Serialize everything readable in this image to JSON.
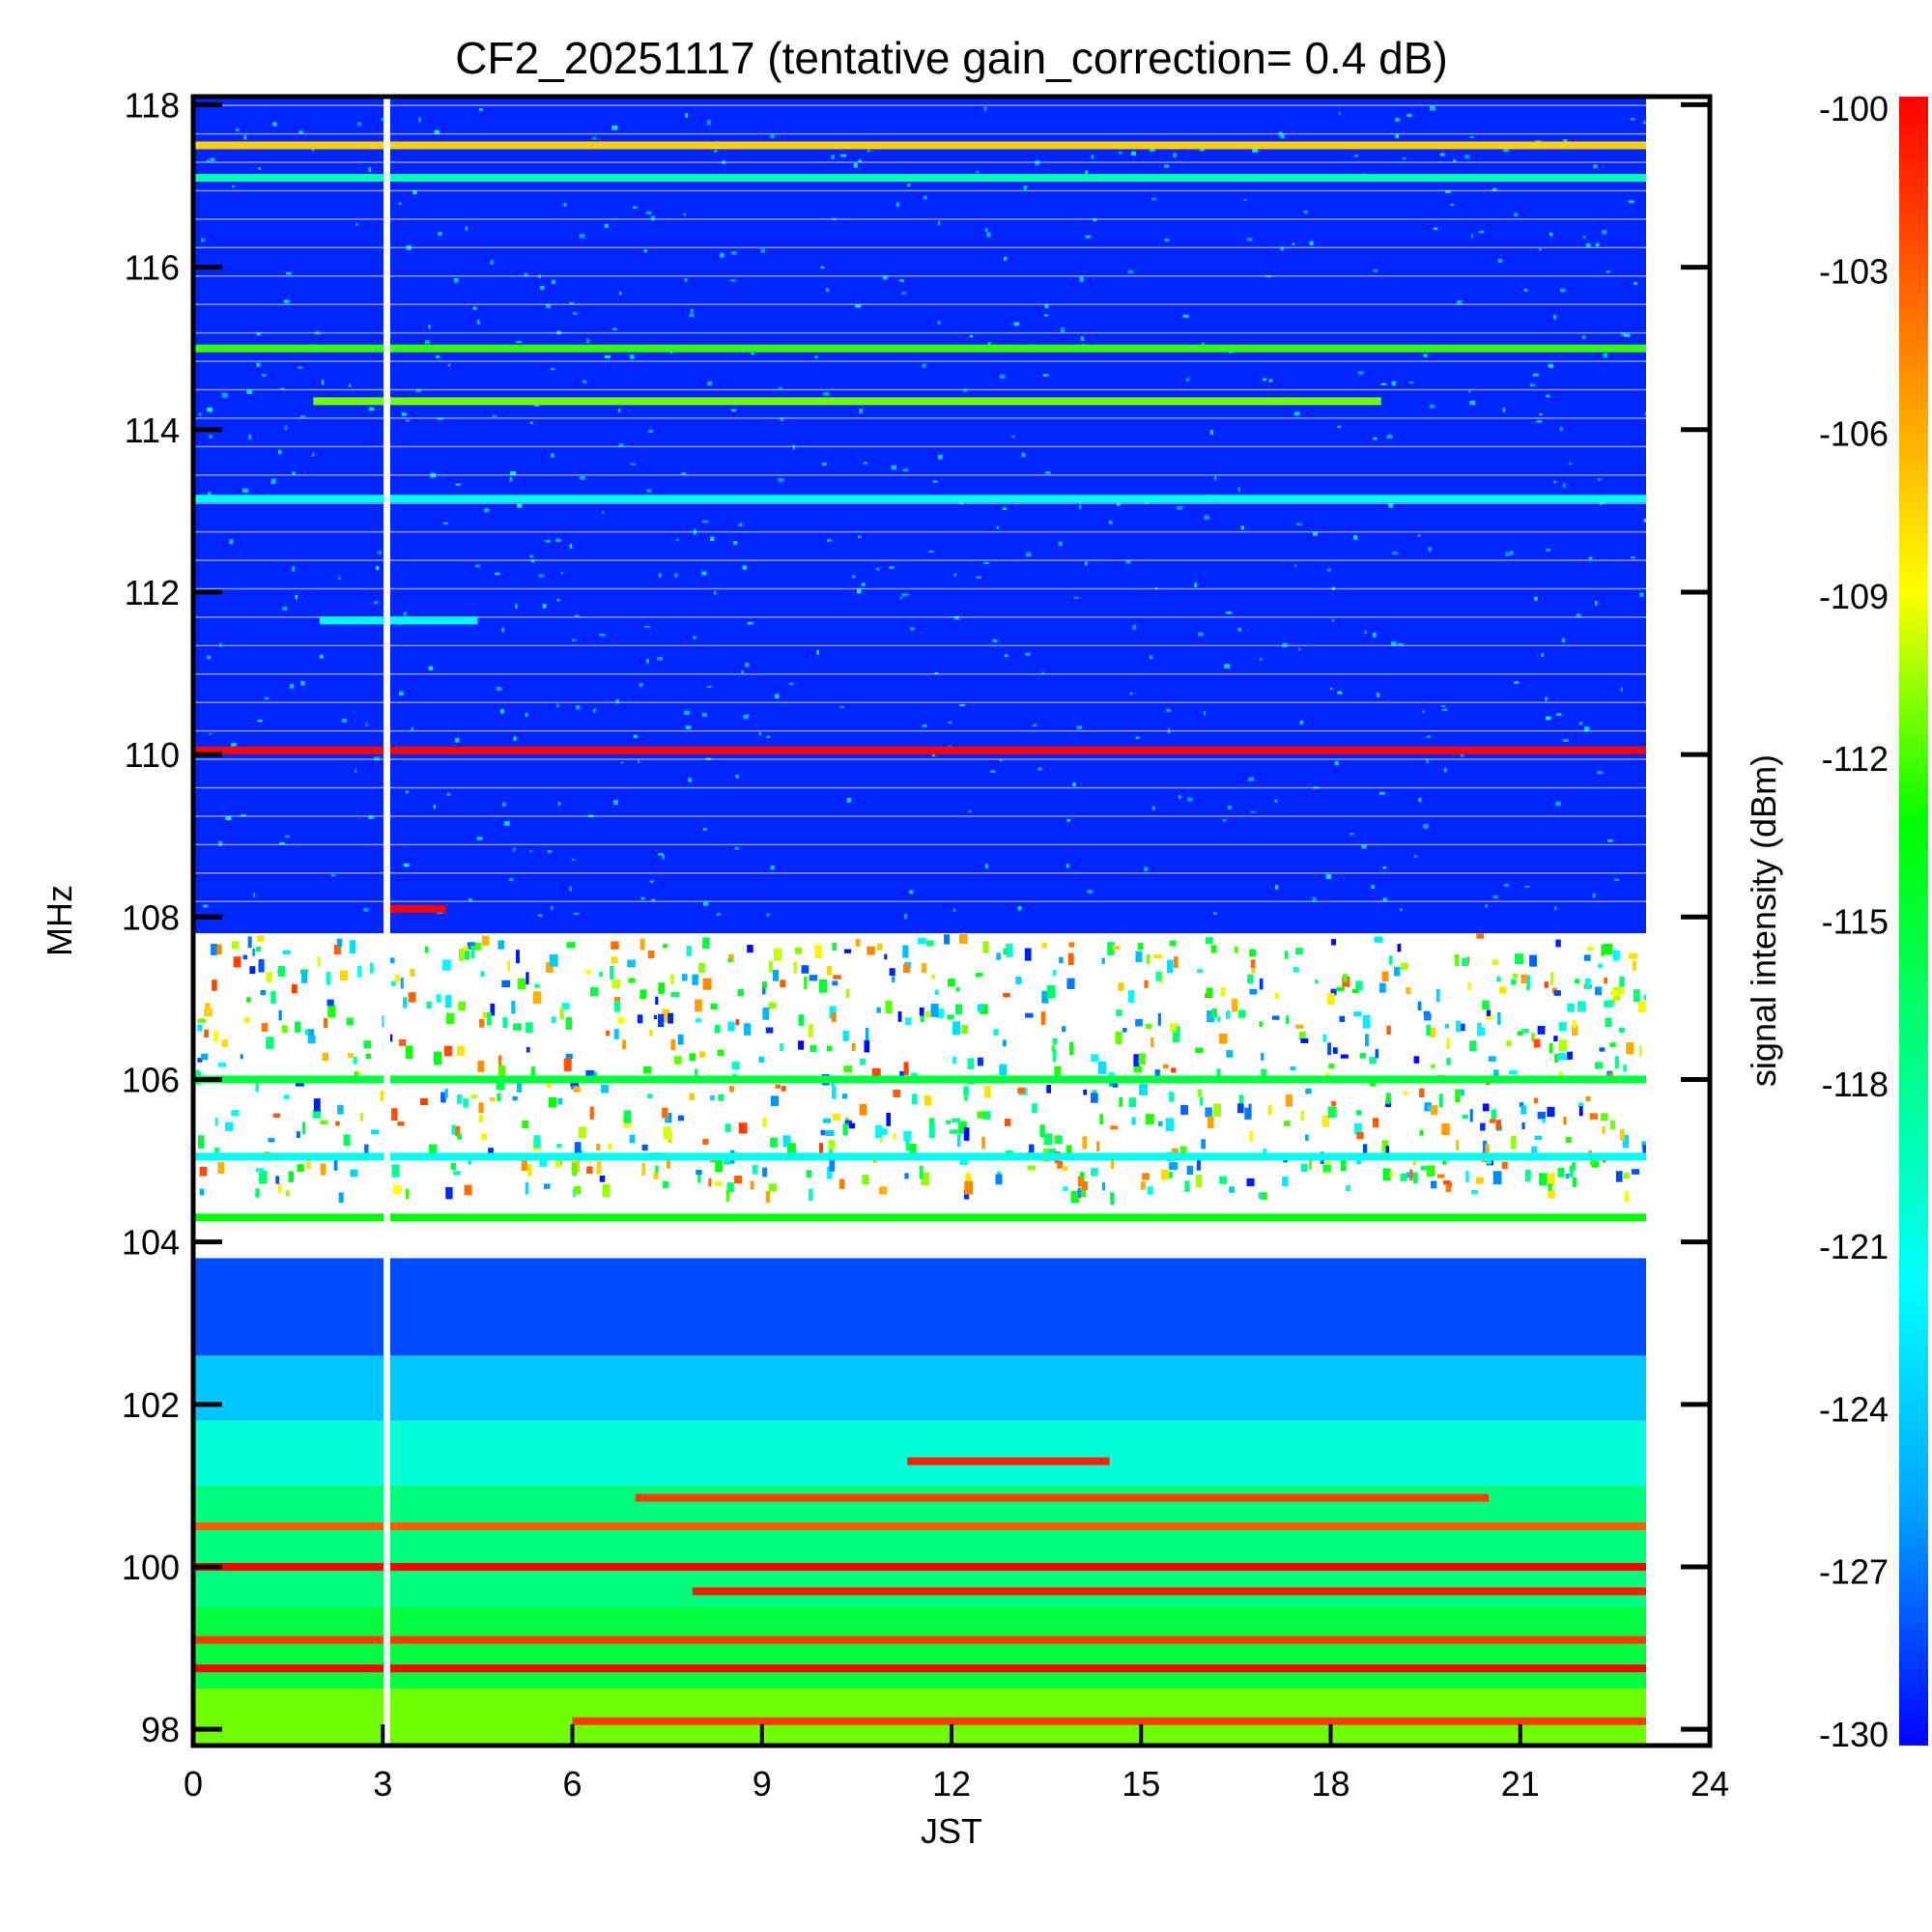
{
  "chart_data": {
    "type": "heatmap",
    "title": "CF2_20251117 (tentative gain_correction=  0.4 dB)",
    "xlabel": "JST",
    "ylabel": "MHz",
    "colorbar_label": "signal intensity (dBm)",
    "xlim": [
      0,
      24
    ],
    "ylim": [
      97.8,
      118.1
    ],
    "x_ticks": [
      "0",
      "3",
      "6",
      "9",
      "12",
      "15",
      "18",
      "21",
      "24"
    ],
    "y_ticks": [
      "98",
      "100",
      "102",
      "104",
      "106",
      "108",
      "110",
      "112",
      "114",
      "116",
      "118"
    ],
    "colorbar_range": [
      -130,
      -100
    ],
    "colorbar_ticks": [
      "-100",
      "-103",
      "-106",
      "-109",
      "-112",
      "-115",
      "-118",
      "-121",
      "-124",
      "-127",
      "-130"
    ],
    "colormap": [
      "#0000ff",
      "#00a0ff",
      "#00ffff",
      "#00ff80",
      "#00ff00",
      "#ffff00",
      "#ff8000",
      "#ff0000"
    ],
    "data_end_hour": 23,
    "data_gap_hour": 3,
    "background_bands": [
      {
        "from": 97.8,
        "to": 98.5,
        "dbm": -111
      },
      {
        "from": 98.5,
        "to": 99.5,
        "dbm": -115
      },
      {
        "from": 99.5,
        "to": 101.0,
        "dbm": -117
      },
      {
        "from": 101.0,
        "to": 101.8,
        "dbm": -120
      },
      {
        "from": 101.8,
        "to": 102.6,
        "dbm": -124
      },
      {
        "from": 102.6,
        "to": 103.8,
        "dbm": -128
      },
      {
        "from": 103.8,
        "to": 104.6,
        "dbm": null
      },
      {
        "from": 104.6,
        "to": 107.8,
        "dbm": null
      },
      {
        "from": 107.8,
        "to": 118.1,
        "dbm": -129
      }
    ],
    "spectral_lines": [
      {
        "mhz": 117.5,
        "dbm": -107,
        "start": 0,
        "end": 23
      },
      {
        "mhz": 117.1,
        "dbm": -119,
        "start": 0,
        "end": 23
      },
      {
        "mhz": 115.0,
        "dbm": -112,
        "start": 0,
        "end": 23
      },
      {
        "mhz": 114.35,
        "dbm": -111,
        "start": 1.9,
        "end": 18.8
      },
      {
        "mhz": 113.15,
        "dbm": -121,
        "start": 0,
        "end": 23
      },
      {
        "mhz": 111.65,
        "dbm": -121,
        "start": 2.0,
        "end": 4.5
      },
      {
        "mhz": 110.05,
        "dbm": -100,
        "start": 0,
        "end": 23
      },
      {
        "mhz": 108.1,
        "dbm": -100,
        "start": 3.0,
        "end": 4.0
      },
      {
        "mhz": 106.0,
        "dbm": -115,
        "start": 0,
        "end": 23
      },
      {
        "mhz": 105.05,
        "dbm": -121,
        "start": 0,
        "end": 23
      },
      {
        "mhz": 104.3,
        "dbm": -113,
        "start": 0,
        "end": 23
      },
      {
        "mhz": 101.3,
        "dbm": -101,
        "start": 11.3,
        "end": 14.5
      },
      {
        "mhz": 100.85,
        "dbm": -102,
        "start": 7.0,
        "end": 20.5
      },
      {
        "mhz": 100.5,
        "dbm": -103,
        "start": 0,
        "end": 23
      },
      {
        "mhz": 100.0,
        "dbm": -100,
        "start": 0,
        "end": 23
      },
      {
        "mhz": 99.7,
        "dbm": -101,
        "start": 7.9,
        "end": 23
      },
      {
        "mhz": 99.1,
        "dbm": -102,
        "start": 0,
        "end": 23
      },
      {
        "mhz": 98.75,
        "dbm": -100,
        "start": 0,
        "end": 23
      },
      {
        "mhz": 98.1,
        "dbm": -102,
        "start": 6.0,
        "end": 23
      }
    ]
  }
}
